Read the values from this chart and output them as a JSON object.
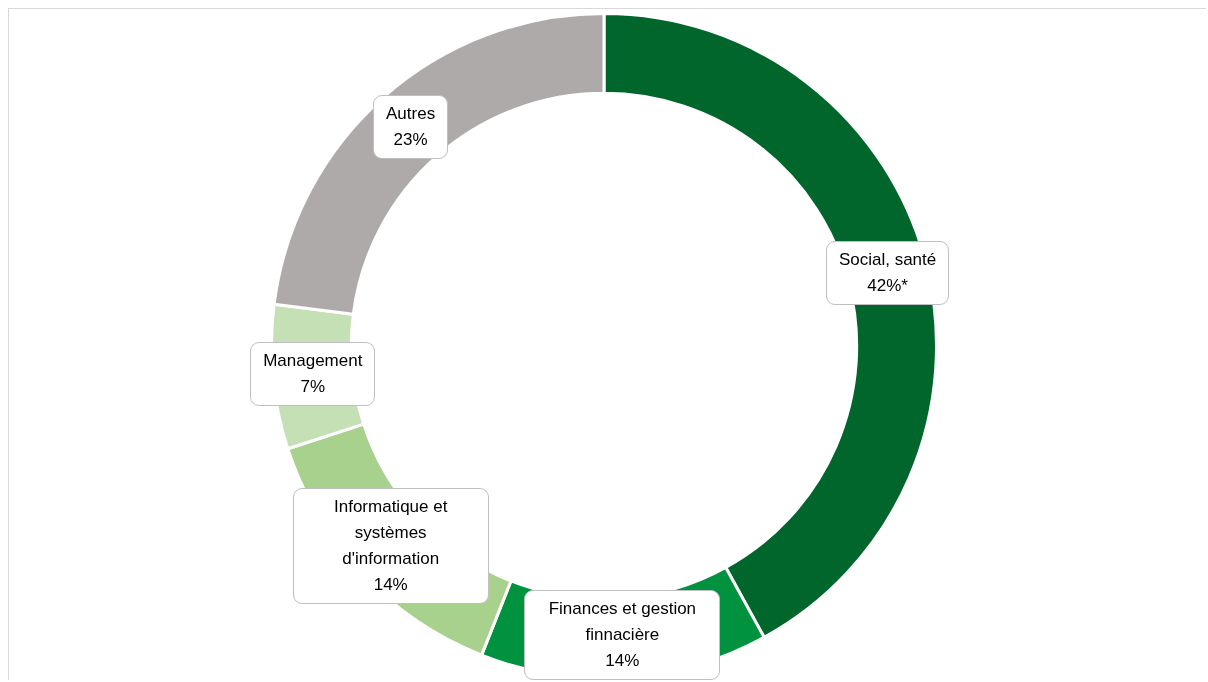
{
  "chart_data": {
    "type": "donut",
    "categories": [
      "Social, santé",
      "Finances et gestion finnacière",
      "Informatique et systèmes d'information",
      "Management",
      "Autres"
    ],
    "values": [
      42,
      14,
      14,
      7,
      23
    ],
    "value_labels": [
      "42%*",
      "14%",
      "14%",
      "7%",
      "23%"
    ],
    "colors": [
      "#00662c",
      "#00923f",
      "#a9d18e",
      "#c5e0b4",
      "#aeaaaa"
    ],
    "legend": false
  }
}
